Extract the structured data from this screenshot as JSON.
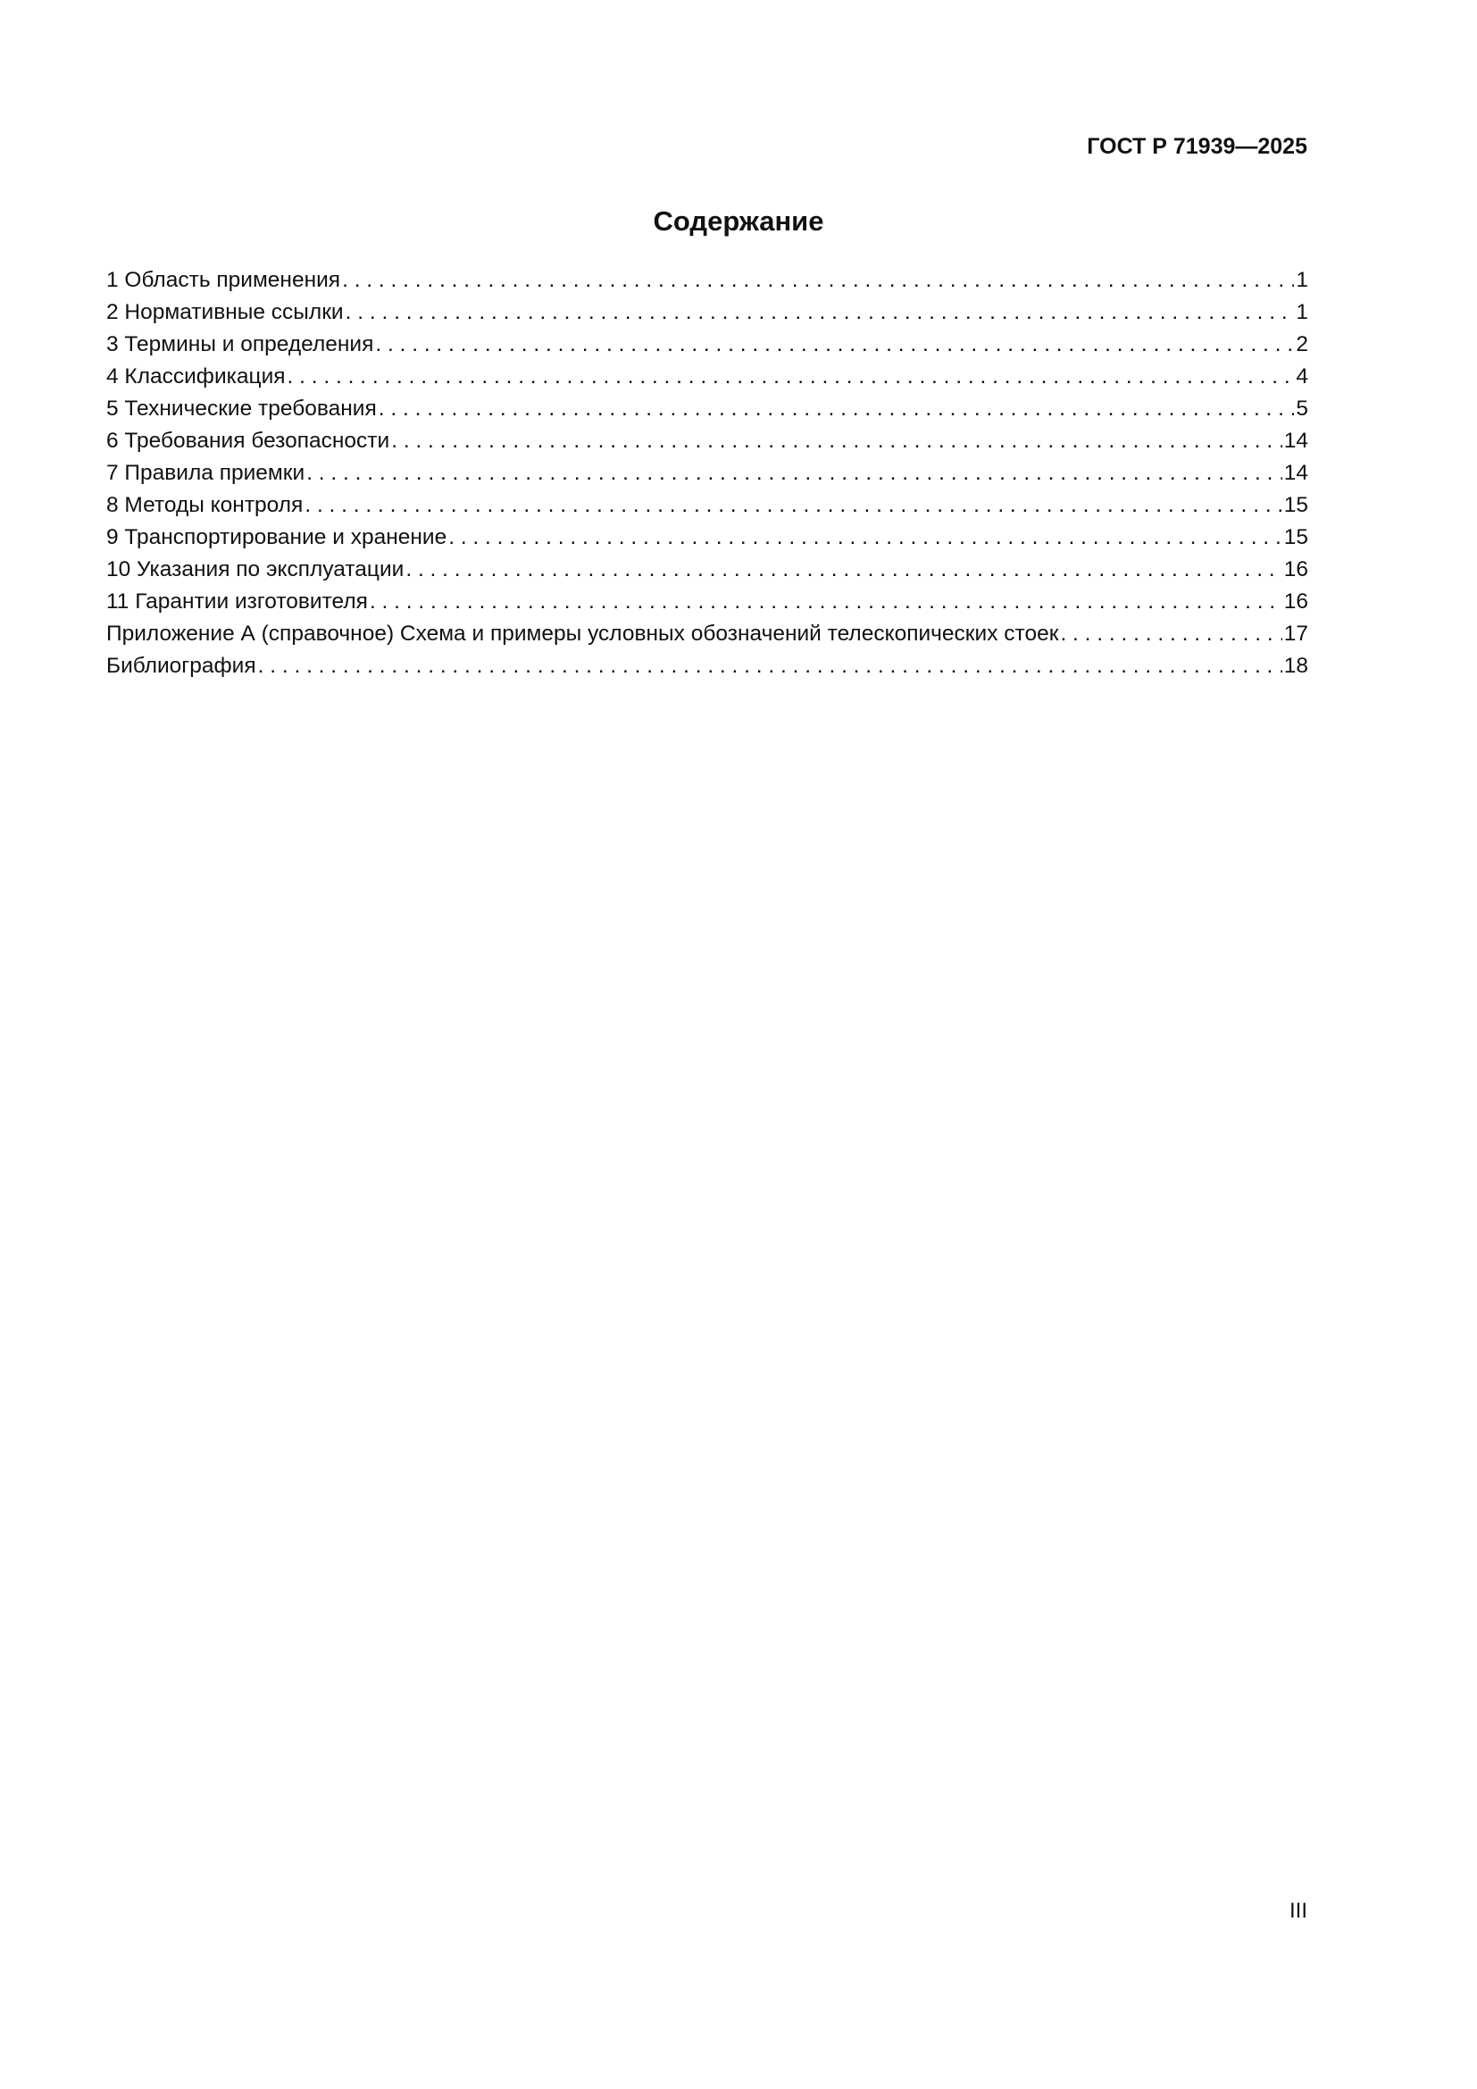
{
  "header": {
    "doc_code": "ГОСТ Р 71939—2025"
  },
  "toc": {
    "title": "Содержание",
    "items": [
      {
        "label": "1  Область применения",
        "page": "1"
      },
      {
        "label": "2  Нормативные ссылки",
        "page": "1"
      },
      {
        "label": "3  Термины и определения",
        "page": "2"
      },
      {
        "label": "4  Классификация ",
        "page": "4"
      },
      {
        "label": "5  Технические требования",
        "page": "5"
      },
      {
        "label": "6  Требования безопасности",
        "page": "14"
      },
      {
        "label": "7  Правила приемки",
        "page": "14"
      },
      {
        "label": "8  Методы контроля",
        "page": "15"
      },
      {
        "label": "9  Транспортирование и хранение ",
        "page": "15"
      },
      {
        "label": "10  Указания по эксплуатации",
        "page": "16"
      },
      {
        "label": "11  Гарантии изготовителя",
        "page": "16"
      },
      {
        "label": "Приложение А (справочное)  Схема и примеры условных обозначений телескопических стоек",
        "page": "17"
      },
      {
        "label": "Библиография ",
        "page": "18"
      }
    ]
  },
  "footer": {
    "page_number": "III"
  }
}
